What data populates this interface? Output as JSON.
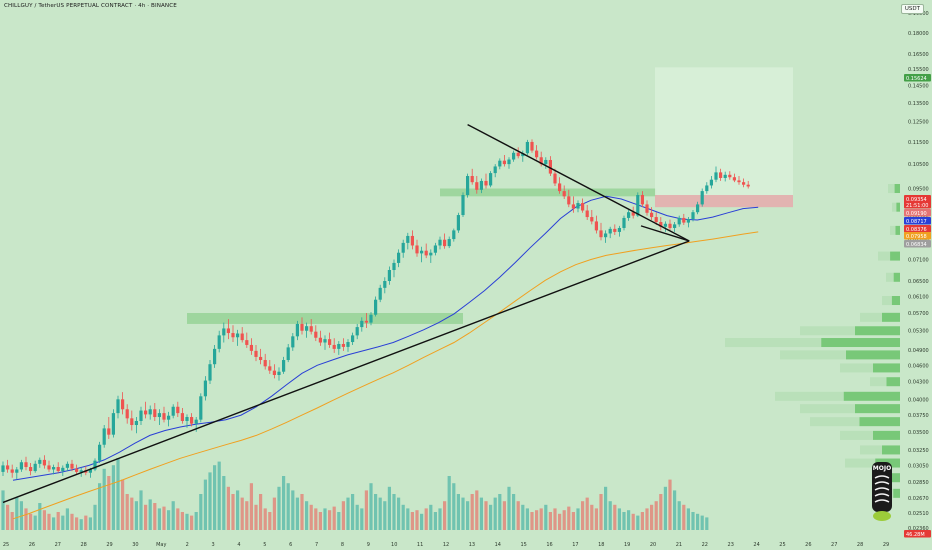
{
  "header": {
    "title": "CHILLGUY / TetherUS PERPETUAL CONTRACT · 4h · BINANCE",
    "unit": "USDT"
  },
  "colors": {
    "background": "#c9e7c9",
    "up": "#26a69a",
    "down": "#ef5350",
    "ma_fast": "#2a3fd6",
    "ma_slow": "#f0a020",
    "trendline": "#111111",
    "zone": "#8fd08f",
    "target_box": "#d9f0d9",
    "stop_box": "#e4aeae"
  },
  "chart_data": {
    "type": "candlestick",
    "y_axis": {
      "ticks": [
        "0.19500",
        "0.18000",
        "0.16500",
        "0.15500",
        "0.14500",
        "0.13500",
        "0.12500",
        "0.11500",
        "0.10500",
        "0.09500",
        "0.08500",
        "0.07700",
        "0.07100",
        "0.06500",
        "0.06100",
        "0.05700",
        "0.05300",
        "0.04900",
        "0.04600",
        "0.04300",
        "0.04000",
        "0.03750",
        "0.03500",
        "0.03250",
        "0.03050",
        "0.02850",
        "0.02670",
        "0.02510",
        "0.02360"
      ],
      "scale": "log"
    },
    "x_axis": {
      "ticks": [
        "25",
        "26",
        "27",
        "28",
        "29",
        "30",
        "May",
        "2",
        "3",
        "4",
        "5",
        "6",
        "7",
        "8",
        "9",
        "10",
        "11",
        "12",
        "13",
        "14",
        "15",
        "16",
        "17",
        "18",
        "19",
        "20",
        "21",
        "22",
        "23",
        "24",
        "25",
        "26",
        "27",
        "28",
        "29"
      ]
    },
    "price_labels": [
      {
        "value": "0.15624",
        "color": "#43a047"
      },
      {
        "value": "0.09354",
        "color": "#e53935"
      },
      {
        "value": "21:51:00",
        "color": "#e53935"
      },
      {
        "value": "0.09190",
        "color": "#e57373"
      },
      {
        "value": "0.08717",
        "color": "#2a3fd6"
      },
      {
        "value": "0.08376",
        "color": "#e53935"
      },
      {
        "value": "0.07958",
        "color": "#f0a020"
      },
      {
        "value": "0.06834",
        "color": "#9e9e9e"
      }
    ],
    "bottom_label": {
      "value": "46.28M",
      "color": "#e53935"
    },
    "candles": [
      [
        0.0297,
        0.031,
        0.0292,
        0.0305
      ],
      [
        0.0305,
        0.0312,
        0.0296,
        0.03
      ],
      [
        0.03,
        0.0306,
        0.029,
        0.0296
      ],
      [
        0.0296,
        0.0303,
        0.0288,
        0.03
      ],
      [
        0.03,
        0.0312,
        0.0297,
        0.0309
      ],
      [
        0.0309,
        0.0316,
        0.0299,
        0.0303
      ],
      [
        0.0303,
        0.0308,
        0.0293,
        0.0298
      ],
      [
        0.0298,
        0.0311,
        0.0296,
        0.0307
      ],
      [
        0.0307,
        0.0315,
        0.0302,
        0.0312
      ],
      [
        0.0312,
        0.0318,
        0.0301,
        0.0305
      ],
      [
        0.0305,
        0.0311,
        0.0297,
        0.03
      ],
      [
        0.03,
        0.0306,
        0.0294,
        0.0303
      ],
      [
        0.0303,
        0.0309,
        0.0296,
        0.0298
      ],
      [
        0.0298,
        0.0305,
        0.0292,
        0.0302
      ],
      [
        0.0302,
        0.031,
        0.0298,
        0.0307
      ],
      [
        0.0307,
        0.0312,
        0.0298,
        0.0301
      ],
      [
        0.0301,
        0.0306,
        0.0294,
        0.0297
      ],
      [
        0.0297,
        0.0302,
        0.0291,
        0.0299
      ],
      [
        0.0299,
        0.0304,
        0.0293,
        0.0296
      ],
      [
        0.0296,
        0.0302,
        0.029,
        0.03
      ],
      [
        0.03,
        0.0314,
        0.0298,
        0.0311
      ],
      [
        0.0311,
        0.0336,
        0.0308,
        0.0332
      ],
      [
        0.0332,
        0.036,
        0.0328,
        0.0355
      ],
      [
        0.0355,
        0.0372,
        0.034,
        0.0346
      ],
      [
        0.0346,
        0.0384,
        0.0342,
        0.0378
      ],
      [
        0.0378,
        0.0406,
        0.037,
        0.04
      ],
      [
        0.04,
        0.0412,
        0.0376,
        0.0384
      ],
      [
        0.0384,
        0.0392,
        0.0362,
        0.037
      ],
      [
        0.037,
        0.0382,
        0.0352,
        0.036
      ],
      [
        0.036,
        0.0372,
        0.0348,
        0.0366
      ],
      [
        0.0366,
        0.0388,
        0.036,
        0.0382
      ],
      [
        0.0382,
        0.0396,
        0.037,
        0.0376
      ],
      [
        0.0376,
        0.039,
        0.0368,
        0.0384
      ],
      [
        0.0384,
        0.0394,
        0.0366,
        0.0372
      ],
      [
        0.0372,
        0.0384,
        0.036,
        0.0378
      ],
      [
        0.0378,
        0.0388,
        0.0364,
        0.0368
      ],
      [
        0.0368,
        0.038,
        0.0358,
        0.0374
      ],
      [
        0.0374,
        0.0392,
        0.037,
        0.0388
      ],
      [
        0.0388,
        0.0396,
        0.0372,
        0.0378
      ],
      [
        0.0378,
        0.0386,
        0.0362,
        0.0366
      ],
      [
        0.0366,
        0.0376,
        0.0356,
        0.0372
      ],
      [
        0.0372,
        0.0378,
        0.0358,
        0.0362
      ],
      [
        0.0362,
        0.0372,
        0.035,
        0.0368
      ],
      [
        0.0368,
        0.041,
        0.0364,
        0.0405
      ],
      [
        0.0405,
        0.044,
        0.0398,
        0.0432
      ],
      [
        0.0432,
        0.047,
        0.0426,
        0.0462
      ],
      [
        0.0462,
        0.05,
        0.0455,
        0.0492
      ],
      [
        0.0492,
        0.053,
        0.0485,
        0.052
      ],
      [
        0.052,
        0.0548,
        0.0505,
        0.0535
      ],
      [
        0.0535,
        0.0556,
        0.0512,
        0.0525
      ],
      [
        0.0525,
        0.0542,
        0.0506,
        0.0516
      ],
      [
        0.0516,
        0.0532,
        0.0498,
        0.0524
      ],
      [
        0.0524,
        0.0538,
        0.0505,
        0.051
      ],
      [
        0.051,
        0.0526,
        0.0494,
        0.05
      ],
      [
        0.05,
        0.0514,
        0.048,
        0.0488
      ],
      [
        0.0488,
        0.05,
        0.0468,
        0.0476
      ],
      [
        0.0476,
        0.0492,
        0.0462,
        0.047
      ],
      [
        0.047,
        0.0482,
        0.0452,
        0.0458
      ],
      [
        0.0458,
        0.047,
        0.0444,
        0.045
      ],
      [
        0.045,
        0.0462,
        0.0436,
        0.0442
      ],
      [
        0.0442,
        0.0456,
        0.0432,
        0.0448
      ],
      [
        0.0448,
        0.0476,
        0.0444,
        0.047
      ],
      [
        0.047,
        0.0502,
        0.0466,
        0.0495
      ],
      [
        0.0495,
        0.0525,
        0.0488,
        0.0518
      ],
      [
        0.0518,
        0.0552,
        0.051,
        0.0545
      ],
      [
        0.0545,
        0.056,
        0.0522,
        0.053
      ],
      [
        0.053,
        0.0548,
        0.0515,
        0.054
      ],
      [
        0.054,
        0.0556,
        0.0522,
        0.0528
      ],
      [
        0.0528,
        0.0542,
        0.0508,
        0.0515
      ],
      [
        0.0515,
        0.053,
        0.0498,
        0.0505
      ],
      [
        0.0505,
        0.052,
        0.049,
        0.0512
      ],
      [
        0.0512,
        0.0526,
        0.0494,
        0.05
      ],
      [
        0.05,
        0.0514,
        0.0484,
        0.0492
      ],
      [
        0.0492,
        0.0508,
        0.048,
        0.0502
      ],
      [
        0.0502,
        0.0514,
        0.0488,
        0.0496
      ],
      [
        0.0496,
        0.0512,
        0.0486,
        0.0506
      ],
      [
        0.0506,
        0.0526,
        0.05,
        0.052
      ],
      [
        0.052,
        0.0545,
        0.0512,
        0.0538
      ],
      [
        0.0538,
        0.056,
        0.0528,
        0.0552
      ],
      [
        0.0552,
        0.057,
        0.0536,
        0.0548
      ],
      [
        0.0548,
        0.0572,
        0.0542,
        0.0566
      ],
      [
        0.0566,
        0.061,
        0.0562,
        0.0602
      ],
      [
        0.0602,
        0.064,
        0.0596,
        0.0632
      ],
      [
        0.0632,
        0.066,
        0.0618,
        0.065
      ],
      [
        0.065,
        0.069,
        0.064,
        0.068
      ],
      [
        0.068,
        0.071,
        0.066,
        0.07
      ],
      [
        0.07,
        0.074,
        0.0688,
        0.073
      ],
      [
        0.073,
        0.077,
        0.0715,
        0.076
      ],
      [
        0.076,
        0.0792,
        0.074,
        0.0782
      ],
      [
        0.0782,
        0.08,
        0.074,
        0.0752
      ],
      [
        0.0752,
        0.077,
        0.0718,
        0.0728
      ],
      [
        0.0728,
        0.0748,
        0.0702,
        0.0736
      ],
      [
        0.0736,
        0.0758,
        0.0714,
        0.0722
      ],
      [
        0.0722,
        0.074,
        0.07,
        0.073
      ],
      [
        0.073,
        0.076,
        0.0722,
        0.0752
      ],
      [
        0.0752,
        0.078,
        0.074,
        0.077
      ],
      [
        0.077,
        0.079,
        0.0742,
        0.075
      ],
      [
        0.075,
        0.078,
        0.0744,
        0.0772
      ],
      [
        0.0772,
        0.0806,
        0.0764,
        0.08
      ],
      [
        0.08,
        0.086,
        0.0792,
        0.0852
      ],
      [
        0.0852,
        0.0935,
        0.0845,
        0.0925
      ],
      [
        0.0925,
        0.101,
        0.0915,
        0.1
      ],
      [
        0.1,
        0.103,
        0.0965,
        0.0975
      ],
      [
        0.0975,
        0.1,
        0.093,
        0.0945
      ],
      [
        0.0945,
        0.099,
        0.0932,
        0.098
      ],
      [
        0.098,
        0.101,
        0.095,
        0.0962
      ],
      [
        0.0962,
        0.102,
        0.0955,
        0.1012
      ],
      [
        0.1012,
        0.105,
        0.0995,
        0.104
      ],
      [
        0.104,
        0.1075,
        0.1028,
        0.1065
      ],
      [
        0.1065,
        0.109,
        0.104,
        0.105
      ],
      [
        0.105,
        0.108,
        0.103,
        0.107
      ],
      [
        0.107,
        0.111,
        0.106,
        0.11
      ],
      [
        0.11,
        0.1125,
        0.1075,
        0.1085
      ],
      [
        0.1085,
        0.111,
        0.106,
        0.1098
      ],
      [
        0.1098,
        0.116,
        0.109,
        0.115
      ],
      [
        0.115,
        0.1162,
        0.11,
        0.111
      ],
      [
        0.111,
        0.1135,
        0.107,
        0.108
      ],
      [
        0.108,
        0.1105,
        0.104,
        0.105
      ],
      [
        0.105,
        0.108,
        0.103,
        0.1068
      ],
      [
        0.1068,
        0.1085,
        0.1,
        0.101
      ],
      [
        0.101,
        0.103,
        0.096,
        0.097
      ],
      [
        0.097,
        0.0995,
        0.093,
        0.094
      ],
      [
        0.094,
        0.0962,
        0.091,
        0.092
      ],
      [
        0.092,
        0.0945,
        0.088,
        0.089
      ],
      [
        0.089,
        0.092,
        0.086,
        0.0875
      ],
      [
        0.0875,
        0.0905,
        0.0862,
        0.0895
      ],
      [
        0.0895,
        0.0912,
        0.086,
        0.0868
      ],
      [
        0.0868,
        0.0888,
        0.0835,
        0.0845
      ],
      [
        0.0845,
        0.087,
        0.082,
        0.083
      ],
      [
        0.083,
        0.085,
        0.079,
        0.08
      ],
      [
        0.08,
        0.0825,
        0.0768,
        0.0778
      ],
      [
        0.0778,
        0.08,
        0.076,
        0.079
      ],
      [
        0.079,
        0.0812,
        0.0775,
        0.0805
      ],
      [
        0.0805,
        0.082,
        0.0785,
        0.0795
      ],
      [
        0.0795,
        0.0815,
        0.078,
        0.0808
      ],
      [
        0.0808,
        0.085,
        0.08,
        0.0842
      ],
      [
        0.0842,
        0.087,
        0.0832,
        0.0862
      ],
      [
        0.0862,
        0.0882,
        0.084,
        0.085
      ],
      [
        0.085,
        0.0935,
        0.0845,
        0.0925
      ],
      [
        0.0925,
        0.094,
        0.088,
        0.089
      ],
      [
        0.089,
        0.0905,
        0.085,
        0.086
      ],
      [
        0.086,
        0.088,
        0.0835,
        0.0845
      ],
      [
        0.0845,
        0.0862,
        0.0818,
        0.0828
      ],
      [
        0.0828,
        0.0845,
        0.08,
        0.0812
      ],
      [
        0.0812,
        0.083,
        0.0795,
        0.0822
      ],
      [
        0.0822,
        0.0836,
        0.08,
        0.0808
      ],
      [
        0.0808,
        0.0828,
        0.0795,
        0.082
      ],
      [
        0.082,
        0.085,
        0.0812,
        0.0842
      ],
      [
        0.0842,
        0.0856,
        0.0818,
        0.0826
      ],
      [
        0.0826,
        0.0845,
        0.081,
        0.0838
      ],
      [
        0.0838,
        0.087,
        0.083,
        0.0862
      ],
      [
        0.0862,
        0.09,
        0.0855,
        0.089
      ],
      [
        0.089,
        0.095,
        0.0882,
        0.094
      ],
      [
        0.094,
        0.0975,
        0.093,
        0.0962
      ],
      [
        0.0962,
        0.1,
        0.095,
        0.0985
      ],
      [
        0.0985,
        0.104,
        0.0975,
        0.1015
      ],
      [
        0.1015,
        0.103,
        0.098,
        0.0992
      ],
      [
        0.0992,
        0.1018,
        0.0978,
        0.1005
      ],
      [
        0.1005,
        0.102,
        0.0985,
        0.0995
      ],
      [
        0.0995,
        0.101,
        0.0975,
        0.0982
      ],
      [
        0.0982,
        0.1,
        0.0965,
        0.0975
      ],
      [
        0.0975,
        0.099,
        0.0955,
        0.0965
      ],
      [
        0.0965,
        0.098,
        0.095,
        0.0958
      ]
    ],
    "volumes": [
      22,
      14,
      10,
      18,
      16,
      12,
      9,
      8,
      15,
      11,
      9,
      7,
      10,
      8,
      12,
      9,
      7,
      6,
      8,
      7,
      14,
      26,
      34,
      30,
      36,
      40,
      28,
      20,
      18,
      16,
      22,
      14,
      17,
      15,
      12,
      13,
      11,
      16,
      12,
      10,
      9,
      8,
      10,
      20,
      28,
      32,
      36,
      38,
      30,
      24,
      20,
      22,
      18,
      16,
      26,
      14,
      20,
      12,
      10,
      18,
      24,
      30,
      26,
      22,
      18,
      20,
      16,
      14,
      12,
      10,
      12,
      11,
      13,
      10,
      16,
      18,
      20,
      14,
      12,
      22,
      26,
      20,
      18,
      16,
      24,
      20,
      18,
      14,
      12,
      10,
      11,
      9,
      12,
      14,
      10,
      12,
      16,
      30,
      26,
      20,
      18,
      16,
      20,
      22,
      18,
      16,
      14,
      18,
      20,
      16,
      24,
      20,
      16,
      14,
      12,
      10,
      11,
      12,
      14,
      10,
      12,
      9,
      11,
      13,
      10,
      12,
      16,
      18,
      14,
      12,
      20,
      24,
      16,
      14,
      12,
      10,
      11,
      9,
      8,
      10,
      12,
      14,
      16,
      20,
      24,
      28,
      22,
      16,
      14,
      12,
      10,
      9,
      8,
      7
    ],
    "ma_fast": [
      0.0287,
      0.029,
      0.0293,
      0.0296,
      0.03,
      0.0305,
      0.0312,
      0.0322,
      0.0334,
      0.0345,
      0.0352,
      0.0357,
      0.0361,
      0.0364,
      0.0368,
      0.0375,
      0.0388,
      0.0405,
      0.0425,
      0.0445,
      0.046,
      0.047,
      0.048,
      0.0488,
      0.0496,
      0.0505,
      0.0518,
      0.0532,
      0.0548,
      0.0568,
      0.0595,
      0.0625,
      0.066,
      0.07,
      0.0745,
      0.079,
      0.084,
      0.088,
      0.0905,
      0.092,
      0.091,
      0.089,
      0.087,
      0.085,
      0.0838,
      0.0835,
      0.0845,
      0.086,
      0.0875,
      0.088
    ],
    "ma_slow": [
      0.0245,
      0.025,
      0.0256,
      0.0262,
      0.0268,
      0.0274,
      0.028,
      0.0286,
      0.0293,
      0.03,
      0.0307,
      0.0314,
      0.032,
      0.0326,
      0.0332,
      0.0338,
      0.0345,
      0.0354,
      0.0364,
      0.0375,
      0.0386,
      0.0398,
      0.041,
      0.0422,
      0.0434,
      0.0446,
      0.046,
      0.0475,
      0.049,
      0.0505,
      0.0525,
      0.0548,
      0.0572,
      0.0598,
      0.0625,
      0.0652,
      0.0675,
      0.0695,
      0.071,
      0.0722,
      0.073,
      0.0738,
      0.0745,
      0.0752,
      0.0758,
      0.0765,
      0.0772,
      0.078,
      0.0788,
      0.0795
    ],
    "trendlines": [
      {
        "from": [
          0,
          0.0262
        ],
        "to": [
          147,
          0.0766
        ]
      },
      {
        "from": [
          101,
          0.1235
        ],
        "to": [
          147,
          0.0766
        ]
      }
    ],
    "zones": [
      {
        "from": 40,
        "to": 100,
        "low": 0.0545,
        "high": 0.057
      },
      {
        "from": 95,
        "to": 142,
        "low": 0.092,
        "high": 0.095
      }
    ],
    "position": {
      "from": 140,
      "to": 170,
      "entry": 0.0925,
      "stop": 0.088,
      "target": 0.1562
    },
    "volume_profile": [
      {
        "price": 0.095,
        "size": 12
      },
      {
        "price": 0.088,
        "size": 8
      },
      {
        "price": 0.08,
        "size": 10
      },
      {
        "price": 0.072,
        "size": 22
      },
      {
        "price": 0.066,
        "size": 14
      },
      {
        "price": 0.06,
        "size": 18
      },
      {
        "price": 0.056,
        "size": 40
      },
      {
        "price": 0.053,
        "size": 100
      },
      {
        "price": 0.0505,
        "size": 175
      },
      {
        "price": 0.048,
        "size": 120
      },
      {
        "price": 0.0455,
        "size": 60
      },
      {
        "price": 0.043,
        "size": 30
      },
      {
        "price": 0.0405,
        "size": 125
      },
      {
        "price": 0.0385,
        "size": 100
      },
      {
        "price": 0.0365,
        "size": 90
      },
      {
        "price": 0.0345,
        "size": 60
      },
      {
        "price": 0.0325,
        "size": 40
      },
      {
        "price": 0.0308,
        "size": 55
      },
      {
        "price": 0.029,
        "size": 25
      },
      {
        "price": 0.0272,
        "size": 15
      }
    ]
  },
  "watermark": {
    "text": "MOJO"
  }
}
